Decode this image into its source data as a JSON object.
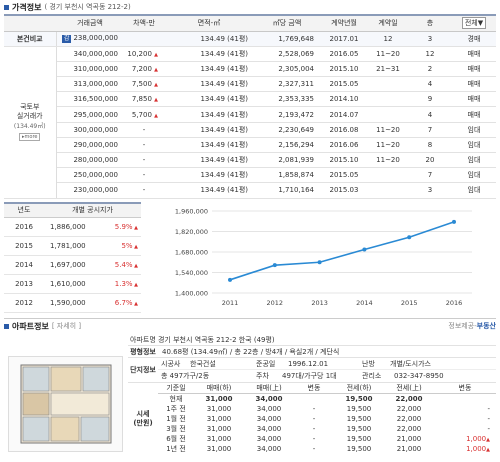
{
  "price_section": {
    "title": "가격정보",
    "subtitle": "( 경기 부천시 역곡동 212-2)"
  },
  "price_table": {
    "headers": [
      "거래금액",
      "차액-만",
      "면적-㎡",
      "㎡당 금액",
      "계약년월",
      "계약일",
      "층"
    ],
    "sort_label": "전체",
    "sort_arrow": "▼",
    "group_label_top": "본건비교",
    "group_label_main": "국토부\n실거래가",
    "group_label_area": "(134.49㎡)",
    "more_label": "▸more",
    "rows": [
      {
        "badge": "감",
        "price": "238,000,000",
        "diff": "",
        "area": "134.49 (41평)",
        "per": "1,769,648",
        "ym": "2017.01",
        "day": "12",
        "floor": "3",
        "type": "경매"
      },
      {
        "badge": "",
        "price": "340,000,000",
        "diff": "10,200",
        "area": "134.49 (41평)",
        "per": "2,528,069",
        "ym": "2016.05",
        "day": "11~20",
        "floor": "12",
        "type": "매매"
      },
      {
        "badge": "",
        "price": "310,000,000",
        "diff": "7,200",
        "area": "134.49 (41평)",
        "per": "2,305,004",
        "ym": "2015.10",
        "day": "21~31",
        "floor": "2",
        "type": "매매"
      },
      {
        "badge": "",
        "price": "313,000,000",
        "diff": "7,500",
        "area": "134.49 (41평)",
        "per": "2,327,311",
        "ym": "2015.05",
        "day": "",
        "floor": "4",
        "type": "매매"
      },
      {
        "badge": "",
        "price": "316,500,000",
        "diff": "7,850",
        "area": "134.49 (41평)",
        "per": "2,353,335",
        "ym": "2014.10",
        "day": "",
        "floor": "9",
        "type": "매매"
      },
      {
        "badge": "",
        "price": "295,000,000",
        "diff": "5,700",
        "area": "134.49 (41평)",
        "per": "2,193,472",
        "ym": "2014.07",
        "day": "",
        "floor": "4",
        "type": "매매"
      },
      {
        "badge": "",
        "price": "300,000,000",
        "diff": "-",
        "area": "134.49 (41평)",
        "per": "2,230,649",
        "ym": "2016.08",
        "day": "11~20",
        "floor": "7",
        "type": "임대"
      },
      {
        "badge": "",
        "price": "290,000,000",
        "diff": "-",
        "area": "134.49 (41평)",
        "per": "2,156,294",
        "ym": "2016.06",
        "day": "11~20",
        "floor": "8",
        "type": "임대"
      },
      {
        "badge": "",
        "price": "280,000,000",
        "diff": "-",
        "area": "134.49 (41평)",
        "per": "2,081,939",
        "ym": "2015.10",
        "day": "11~20",
        "floor": "20",
        "type": "임대"
      },
      {
        "badge": "",
        "price": "250,000,000",
        "diff": "-",
        "area": "134.49 (41평)",
        "per": "1,858,874",
        "ym": "2015.05",
        "day": "",
        "floor": "7",
        "type": "임대"
      },
      {
        "badge": "",
        "price": "230,000,000",
        "diff": "-",
        "area": "134.49 (41평)",
        "per": "1,710,164",
        "ym": "2015.03",
        "day": "",
        "floor": "3",
        "type": "임대"
      }
    ]
  },
  "public_price": {
    "headers": [
      "년도",
      "개별 공시지가"
    ],
    "rows": [
      {
        "year": "2016",
        "value": "1,886,000",
        "pct": "5.9%"
      },
      {
        "year": "2015",
        "value": "1,781,000",
        "pct": "5%"
      },
      {
        "year": "2014",
        "value": "1,697,000",
        "pct": "5.4%"
      },
      {
        "year": "2013",
        "value": "1,610,000",
        "pct": "1.3%"
      },
      {
        "year": "2012",
        "value": "1,590,000",
        "pct": "6.7%"
      }
    ]
  },
  "chart_data": {
    "type": "line",
    "x": [
      "2011",
      "2012",
      "2013",
      "2014",
      "2015",
      "2016"
    ],
    "values": [
      1490000,
      1590000,
      1610000,
      1697000,
      1781000,
      1886000
    ],
    "yticks": [
      "1,960,000",
      "1,820,000",
      "1,680,000",
      "1,540,000",
      "1,400,000"
    ],
    "ylim": [
      1400000,
      1960000
    ],
    "color": "#2a8ad4",
    "grid": true
  },
  "apt_section": {
    "title": "아파트정보",
    "subtitle": "[ 자세히 ]",
    "source": "정보제공-",
    "source_brand": "부동산"
  },
  "apt_info": {
    "name": "아파트명 경기 부천시 역곡동 212-2 한국 (49평)",
    "area_key": "평형정보",
    "area_val": "40.68평 (134.49㎡) / 총 22층 / 방4개 / 욕실2개 / 계단식",
    "complex_key": "단지정보",
    "builder_key": "시공사",
    "builder_val": "한국건설",
    "done_key": "준공일",
    "done_val": "1996.12.01",
    "heat_key": "난방",
    "heat_val": "개별/도시가스",
    "households": "총 497가구/2동",
    "parking_key": "주차",
    "parking_val": "497대/가구당 1대",
    "mgmt_key": "관리소",
    "mgmt_val": "032-347-8950",
    "market_key": "시세\n(만원)",
    "market_headers": [
      "기준일",
      "매매(하)",
      "매매(上)",
      "변동",
      "전세(하)",
      "전세(上)",
      "변동"
    ],
    "market_rows": [
      {
        "date": "현재",
        "a": "31,000",
        "b": "34,000",
        "c": "",
        "d": "19,500",
        "e": "22,000",
        "f": ""
      },
      {
        "date": "1주 전",
        "a": "31,000",
        "b": "34,000",
        "c": "-",
        "d": "19,500",
        "e": "22,000",
        "f": "-"
      },
      {
        "date": "1월 전",
        "a": "31,000",
        "b": "34,000",
        "c": "-",
        "d": "19,500",
        "e": "22,000",
        "f": "-"
      },
      {
        "date": "3월 전",
        "a": "31,000",
        "b": "34,000",
        "c": "-",
        "d": "19,500",
        "e": "22,000",
        "f": "-"
      },
      {
        "date": "6월 전",
        "a": "31,000",
        "b": "34,000",
        "c": "-",
        "d": "19,500",
        "e": "21,000",
        "f": "1,000"
      },
      {
        "date": "1년 전",
        "a": "31,000",
        "b": "34,000",
        "c": "-",
        "d": "19,500",
        "e": "21,000",
        "f": "1,000"
      }
    ]
  }
}
